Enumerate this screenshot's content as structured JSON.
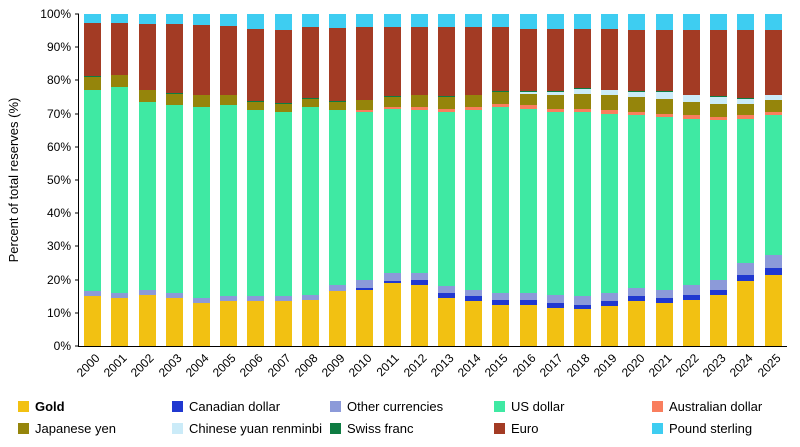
{
  "chart_data": {
    "type": "bar",
    "stacked": true,
    "title": "",
    "xlabel": "",
    "ylabel": "Percent of total reserves (%)",
    "ylim": [
      0,
      100
    ],
    "ytick_step": 10,
    "ytick_suffix": "%",
    "grid": false,
    "legend_position": "bottom",
    "x": [
      "2000",
      "2001",
      "2002",
      "2003",
      "2004",
      "2005",
      "2006",
      "2007",
      "2008",
      "2009",
      "2010",
      "2011",
      "2012",
      "2013",
      "2014",
      "2015",
      "2016",
      "2017",
      "2018",
      "2019",
      "2020",
      "2021",
      "2022",
      "2023",
      "2024",
      "2025"
    ],
    "series": [
      {
        "name": "Gold",
        "color": "#F2C112",
        "values": [
          15.0,
          14.5,
          15.5,
          14.5,
          13.0,
          13.5,
          13.5,
          13.5,
          14.0,
          16.5,
          17.0,
          19.0,
          18.5,
          14.5,
          13.5,
          12.5,
          12.5,
          11.5,
          11.0,
          12.0,
          13.5,
          13.0,
          14.0,
          15.5,
          19.5,
          21.5
        ]
      },
      {
        "name": "Canadian dollar",
        "color": "#2038D0",
        "values": [
          0,
          0,
          0,
          0,
          0,
          0,
          0,
          0,
          0,
          0,
          0.5,
          0.5,
          1.5,
          1.5,
          1.5,
          1.5,
          1.5,
          1.5,
          1.5,
          1.5,
          1.5,
          1.5,
          1.5,
          1.5,
          2.0,
          2.0
        ]
      },
      {
        "name": "Other currencies",
        "color": "#8C9AD9",
        "values": [
          1.5,
          1.5,
          1.5,
          1.5,
          1.5,
          1.5,
          1.5,
          1.5,
          1.5,
          2.0,
          2.5,
          2.5,
          2.0,
          2.0,
          2.0,
          2.0,
          2.0,
          2.5,
          2.5,
          2.5,
          2.5,
          2.5,
          3.0,
          3.0,
          3.5,
          4.0
        ]
      },
      {
        "name": "US dollar",
        "color": "#3FE9A3",
        "values": [
          60.5,
          62.0,
          56.5,
          56.5,
          57.5,
          57.5,
          56.0,
          55.5,
          56.5,
          52.5,
          50.5,
          49.5,
          49.0,
          52.5,
          54.0,
          56.0,
          55.5,
          55.0,
          55.5,
          54.0,
          52.0,
          52.0,
          50.0,
          48.0,
          43.5,
          42.0
        ]
      },
      {
        "name": "Australian dollar",
        "color": "#F97E5E",
        "values": [
          0,
          0,
          0,
          0,
          0,
          0,
          0,
          0,
          0,
          0,
          0.5,
          0.5,
          1.0,
          1.0,
          1.0,
          1.0,
          1.0,
          1.0,
          1.0,
          1.0,
          1.0,
          1.0,
          1.0,
          1.0,
          1.0,
          1.0
        ]
      },
      {
        "name": "Japanese yen",
        "color": "#95850B",
        "values": [
          4.0,
          3.5,
          3.5,
          3.5,
          3.5,
          3.0,
          2.5,
          2.5,
          2.5,
          2.5,
          3.0,
          3.0,
          3.5,
          3.5,
          3.5,
          3.5,
          3.5,
          4.0,
          4.5,
          4.5,
          4.5,
          4.5,
          4.0,
          4.0,
          3.5,
          3.5
        ]
      },
      {
        "name": "Chinese yuan renminbi",
        "color": "#CBEBF8",
        "values": [
          0,
          0,
          0,
          0,
          0,
          0,
          0,
          0,
          0,
          0,
          0,
          0,
          0,
          0,
          0,
          0,
          0.5,
          1.0,
          1.5,
          1.5,
          1.5,
          2.0,
          2.0,
          2.0,
          1.5,
          1.5
        ]
      },
      {
        "name": "Swiss franc",
        "color": "#0E7C42",
        "values": [
          0.2,
          0.2,
          0.2,
          0.2,
          0.2,
          0.2,
          0.2,
          0.2,
          0.2,
          0.2,
          0.2,
          0.2,
          0.2,
          0.2,
          0.2,
          0.2,
          0.2,
          0.2,
          0.2,
          0.2,
          0.2,
          0.2,
          0.2,
          0.2,
          0.2,
          0.2
        ]
      },
      {
        "name": "Euro",
        "color": "#A33B24",
        "values": [
          16.0,
          15.5,
          19.9,
          20.9,
          20.9,
          20.6,
          21.9,
          22.1,
          21.3,
          22.0,
          21.9,
          21.0,
          20.3,
          20.8,
          20.5,
          19.5,
          18.9,
          18.8,
          17.8,
          18.2,
          18.6,
          18.5,
          19.4,
          19.9,
          20.4,
          19.5
        ]
      },
      {
        "name": "Pound sterling",
        "color": "#3ECDF1",
        "values": [
          2.8,
          2.8,
          2.9,
          2.9,
          3.4,
          3.7,
          4.4,
          4.7,
          4.0,
          4.3,
          3.9,
          3.8,
          4.0,
          4.0,
          3.8,
          3.8,
          4.4,
          4.5,
          4.5,
          4.6,
          4.7,
          4.8,
          4.9,
          4.9,
          4.9,
          4.8
        ]
      }
    ],
    "legend_order": [
      "Gold",
      "Canadian dollar",
      "Other currencies",
      "US dollar",
      "Australian dollar",
      "Japanese yen",
      "Chinese yuan renminbi",
      "Swiss franc",
      "Euro",
      "Pound sterling"
    ]
  }
}
